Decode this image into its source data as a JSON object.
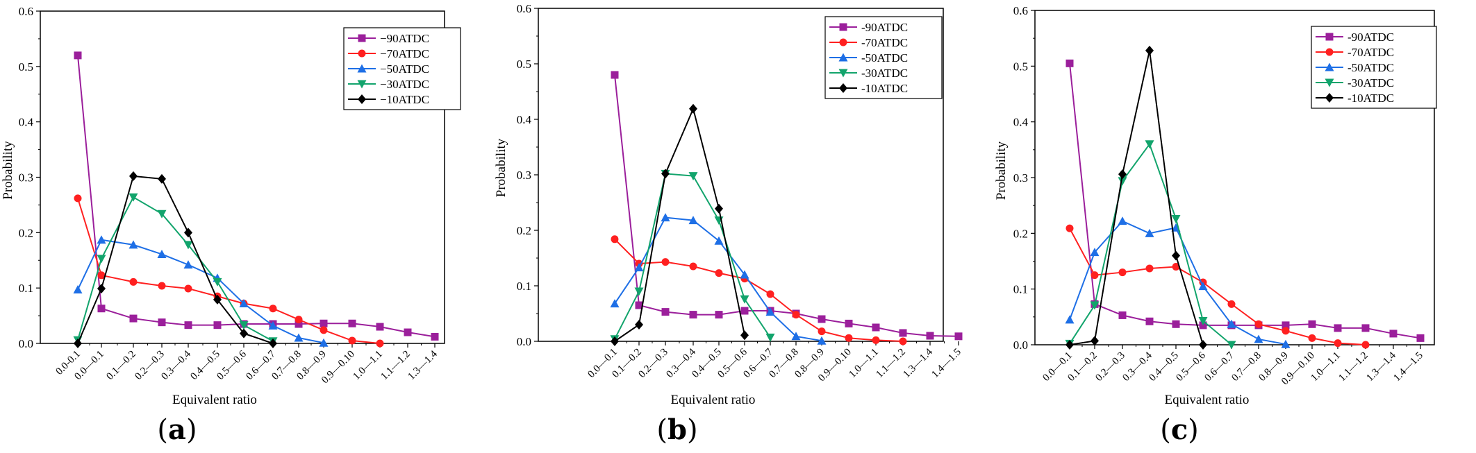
{
  "figure": {
    "captions": [
      "(a)",
      "(b)",
      "(c)"
    ],
    "caption_letters": [
      "a",
      "b",
      "c"
    ]
  },
  "colors": {
    "-90ATDC": "#9b1f9b",
    "-70ATDC": "#ff2020",
    "-50ATDC": "#1e6fe6",
    "-30ATDC": "#12a46c",
    "-10ATDC": "#000000"
  },
  "chart_data": [
    {
      "type": "line",
      "panel": "a",
      "xlabel": "Equivalent ratio",
      "ylabel": "Probability",
      "ylim": [
        0,
        0.6
      ],
      "yticks": [
        "0.0",
        "0.1",
        "0.2",
        "0.3",
        "0.4",
        "0.5",
        "0.6"
      ],
      "categories": [
        "0.0-0.1",
        "0.0—0.1",
        "0.1—0.2",
        "0.2—0.3",
        "0.3—0.4",
        "0.4—0.5",
        "0.5—0.6",
        "0.6—0.7",
        "0.7—0.8",
        "0.8—0.9",
        "0.9—0.10",
        "1.0—1.1",
        "1.1—1.2",
        "1.3—1.4"
      ],
      "legend_position": "top-right",
      "series": [
        {
          "name": "−90ATDC",
          "color_key": "-90ATDC",
          "marker": "square",
          "values": [
            0.52,
            0.063,
            0.045,
            0.038,
            0.033,
            0.033,
            0.035,
            0.035,
            0.035,
            0.036,
            0.036,
            0.03,
            0.02,
            0.012
          ]
        },
        {
          "name": "−70ATDC",
          "color_key": "-70ATDC",
          "marker": "circle",
          "values": [
            0.262,
            0.123,
            0.111,
            0.104,
            0.099,
            0.085,
            0.072,
            0.063,
            0.043,
            0.024,
            0.005,
            0.0,
            null,
            null
          ]
        },
        {
          "name": "−50ATDC",
          "color_key": "-50ATDC",
          "marker": "triangle-up",
          "values": [
            0.097,
            0.187,
            0.178,
            0.161,
            0.142,
            0.118,
            0.072,
            0.032,
            0.01,
            0.001,
            null,
            null,
            null,
            null
          ]
        },
        {
          "name": "−30ATDC",
          "color_key": "-30ATDC",
          "marker": "triangle-down",
          "values": [
            0.006,
            0.153,
            0.264,
            0.234,
            0.178,
            0.111,
            0.033,
            0.004,
            null,
            null,
            null,
            null,
            null,
            null
          ]
        },
        {
          "name": "−10ATDC",
          "color_key": "-10ATDC",
          "marker": "diamond",
          "values": [
            0.0,
            0.099,
            0.302,
            0.297,
            0.2,
            0.079,
            0.018,
            0.0,
            null,
            null,
            null,
            null,
            null,
            null
          ]
        }
      ]
    },
    {
      "type": "line",
      "panel": "b",
      "xlabel": "Equivalent ratio",
      "ylabel": "Probability",
      "ylim": [
        0,
        0.6
      ],
      "yticks": [
        "0.0",
        "0.1",
        "0.2",
        "0.3",
        "0.4",
        "0.5",
        "0.6"
      ],
      "categories": [
        "0.0—0.1",
        "0.1—0.2",
        "0.2—0.3",
        "0.3—0.4",
        "0.4—0.5",
        "0.5—0.6",
        "0.6—0.7",
        "0.7—0.8",
        "0.8—0.9",
        "0.9—0.10",
        "1.0—1.1",
        "1.1—1.2",
        "1.3—1.4",
        "1.4—1.5"
      ],
      "legend_position": "top-right",
      "series": [
        {
          "name": "-90ATDC",
          "color_key": "-90ATDC",
          "marker": "square",
          "values": [
            0.48,
            0.065,
            0.053,
            0.048,
            0.048,
            0.055,
            0.055,
            0.05,
            0.04,
            0.032,
            0.025,
            0.015,
            0.01,
            0.009
          ]
        },
        {
          "name": "-70ATDC",
          "color_key": "-70ATDC",
          "marker": "circle",
          "values": [
            0.184,
            0.14,
            0.143,
            0.135,
            0.123,
            0.113,
            0.085,
            0.048,
            0.018,
            0.006,
            0.002,
            0.0,
            null,
            null
          ]
        },
        {
          "name": "-50ATDC",
          "color_key": "-50ATDC",
          "marker": "triangle-up",
          "values": [
            0.068,
            0.133,
            0.223,
            0.218,
            0.181,
            0.12,
            0.053,
            0.009,
            0.001,
            null,
            null,
            null,
            null,
            null
          ]
        },
        {
          "name": "-30ATDC",
          "color_key": "-30ATDC",
          "marker": "triangle-down",
          "values": [
            0.004,
            0.09,
            0.302,
            0.298,
            0.218,
            0.076,
            0.007,
            null,
            null,
            null,
            null,
            null,
            null,
            null
          ]
        },
        {
          "name": "-10ATDC",
          "color_key": "-10ATDC",
          "marker": "diamond",
          "values": [
            0.0,
            0.03,
            0.302,
            0.419,
            0.239,
            0.011,
            null,
            null,
            null,
            null,
            null,
            null,
            null,
            null
          ]
        }
      ]
    },
    {
      "type": "line",
      "panel": "c",
      "xlabel": "Equivalent ratio",
      "ylabel": "Probability",
      "ylim": [
        0,
        0.6
      ],
      "yticks": [
        "0.0",
        "0.1",
        "0.2",
        "0.3",
        "0.4",
        "0.5",
        "0.6"
      ],
      "categories": [
        "0.0—0.1",
        "0.1—0.2",
        "0.2—0.3",
        "0.3—0.4",
        "0.4—0.5",
        "0.5—0.6",
        "0.6—0.7",
        "0.7—0.8",
        "0.8—0.9",
        "0.9—0.10",
        "1.0—1.1",
        "1.1—1.2",
        "1.3—1.4",
        "1.4—1.5"
      ],
      "legend_position": "top-right",
      "series": [
        {
          "name": "-90ATDC",
          "color_key": "-90ATDC",
          "marker": "square",
          "values": [
            0.505,
            0.073,
            0.053,
            0.042,
            0.037,
            0.035,
            0.035,
            0.035,
            0.035,
            0.037,
            0.03,
            0.03,
            0.02,
            0.012
          ]
        },
        {
          "name": "-70ATDC",
          "color_key": "-70ATDC",
          "marker": "circle",
          "values": [
            0.209,
            0.125,
            0.13,
            0.137,
            0.14,
            0.112,
            0.073,
            0.037,
            0.025,
            0.012,
            0.003,
            0.0,
            null,
            null
          ]
        },
        {
          "name": "-50ATDC",
          "color_key": "-50ATDC",
          "marker": "triangle-up",
          "values": [
            0.045,
            0.166,
            0.222,
            0.2,
            0.21,
            0.105,
            0.037,
            0.01,
            0.001,
            null,
            null,
            null,
            null,
            null
          ]
        },
        {
          "name": "-30ATDC",
          "color_key": "-30ATDC",
          "marker": "triangle-down",
          "values": [
            0.002,
            0.071,
            0.294,
            0.36,
            0.226,
            0.043,
            0.0,
            null,
            null,
            null,
            null,
            null,
            null,
            null
          ]
        },
        {
          "name": "-10ATDC",
          "color_key": "-10ATDC",
          "marker": "diamond",
          "values": [
            0.0,
            0.007,
            0.306,
            0.528,
            0.16,
            0.0,
            null,
            null,
            null,
            null,
            null,
            null,
            null,
            null
          ]
        }
      ]
    }
  ]
}
